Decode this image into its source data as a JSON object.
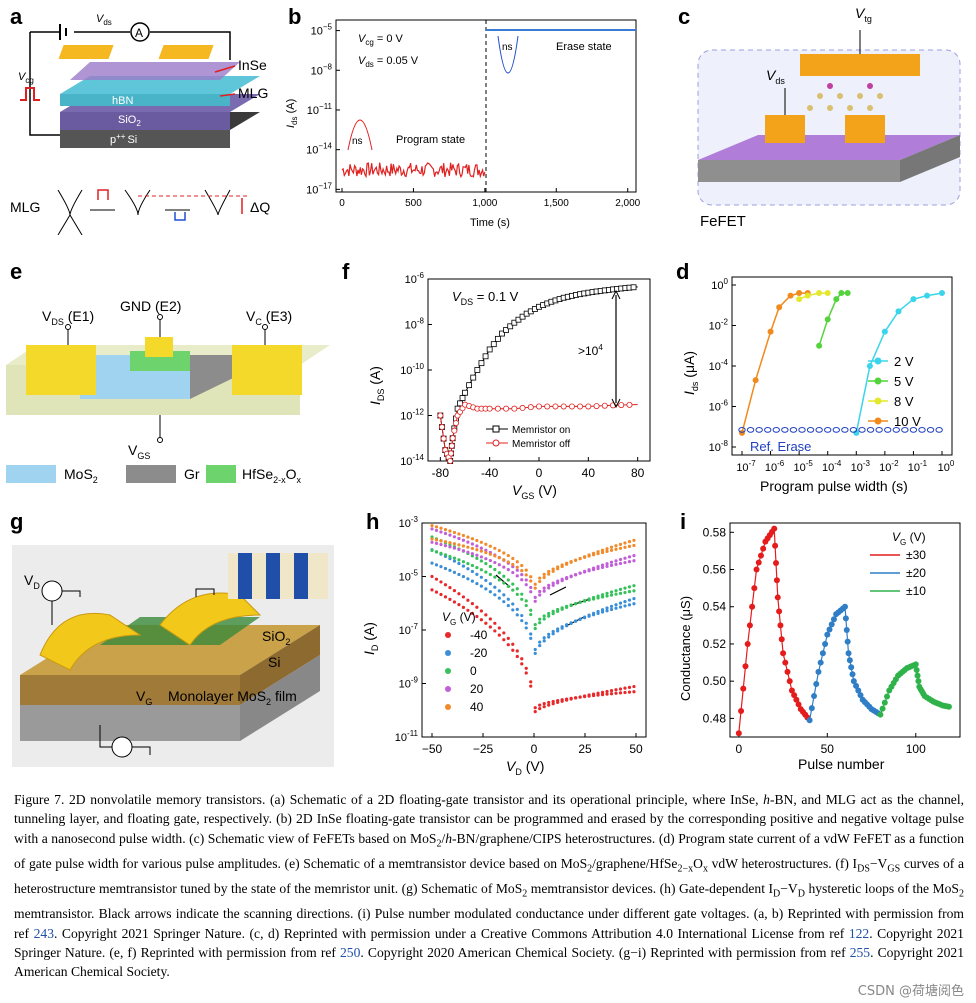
{
  "panels": {
    "a": {
      "letter": "a",
      "vds": "V",
      "vds_sub": "ds",
      "vcg": "V",
      "vcg_sub": "cg",
      "ammeter": "A",
      "layers": [
        "InSe",
        "hBN",
        "MLG",
        "SiO",
        "2",
        "p",
        "++",
        "Si"
      ],
      "mlg": "MLG",
      "dq": "ΔQ"
    },
    "b": {
      "letter": "b",
      "vcg": "V",
      "vcg_sub": "cg",
      "vcg_val": " = 0 V",
      "vds": "V",
      "vds_sub": "ds",
      "vds_val": " = 0.05 V",
      "program": "Program state",
      "erase": "Erase state",
      "ns": "ns",
      "ylabel": "I",
      "ylabel_sub": "ds",
      "ylabel_unit": " (A)",
      "xlabel": "Time (s)",
      "xticks": [
        "0",
        "500",
        "1,000",
        "1,500",
        "2,000"
      ],
      "yticks": [
        "10",
        "10",
        "10",
        "10",
        "10"
      ],
      "yexp": [
        "−5",
        "−8",
        "−11",
        "−14",
        "−17"
      ]
    },
    "c": {
      "letter": "c",
      "vtg": "V",
      "vtg_sub": "tg",
      "vds": "V",
      "vds_sub": "ds",
      "fefet": "FeFET"
    },
    "e": {
      "letter": "e",
      "vds": "V",
      "vds_sub": "DS",
      "vds_rest": " (E1)",
      "gnd": "GND (E2)",
      "vc": "V",
      "vc_sub": "C",
      "vc_rest": " (E3)",
      "vgs": "V",
      "vgs_sub": "GS",
      "legend": [
        {
          "label": "MoS",
          "sub": "2",
          "color": "#9fd3f0"
        },
        {
          "label": "Gr",
          "sub": "",
          "color": "#8c8c8c"
        },
        {
          "label": "HfSe",
          "sub": "2-x",
          "tail": "O",
          "tail_sub": "x",
          "color": "#6dd46d"
        }
      ]
    },
    "f": {
      "letter": "f",
      "vds": "V",
      "vds_sub": "DS",
      "vds_val": " = 0.1 V",
      "ratio": ">10",
      "ratio_exp": "4",
      "on": "Memristor on",
      "off": "Memristor off",
      "ylabel": "I",
      "ylabel_sub": "DS",
      "ylabel_unit": " (A)",
      "xlabel": "V",
      "xlabel_sub": "GS",
      "xlabel_unit": " (V)",
      "xticks": [
        "-80",
        "-40",
        "0",
        "40",
        "80"
      ],
      "yexp": [
        "-6",
        "-8",
        "-10",
        "-12",
        "-14"
      ],
      "ytick_base": "10"
    },
    "d": {
      "letter": "d",
      "ylabel": "I",
      "ylabel_sub": "ds",
      "ylabel_unit": " (μA)",
      "xlabel": "Program pulse width (s)",
      "ref": "Ref. Erase",
      "legend": [
        {
          "label": "2 V",
          "color": "#3ad5ea"
        },
        {
          "label": "5 V",
          "color": "#55d33c"
        },
        {
          "label": "8 V",
          "color": "#e4e82c"
        },
        {
          "label": "10 V",
          "color": "#f08a1c"
        }
      ],
      "xexp": [
        "-7",
        "-6",
        "-5",
        "-4",
        "-3",
        "-2",
        "-1",
        "0"
      ],
      "yexp": [
        "0",
        "-2",
        "-4",
        "-6",
        "-8"
      ],
      "tick_base": "10"
    },
    "g": {
      "letter": "g",
      "vd": "V",
      "vd_sub": "D",
      "vg": "V",
      "vg_sub": "G",
      "sio2": "SiO",
      "sio2_sub": "2",
      "si": "Si",
      "film": "Monolayer MoS",
      "film_sub": "2",
      "film_tail": " film"
    },
    "h": {
      "letter": "h",
      "ylabel": "I",
      "ylabel_sub": "D",
      "ylabel_unit": " (A)",
      "xlabel": "V",
      "xlabel_sub": "D",
      "xlabel_unit": " (V)",
      "legend_title": "V",
      "legend_title_sub": "G",
      "legend_title_unit": " (V)",
      "legend": [
        {
          "label": "-40",
          "color": "#e8282a"
        },
        {
          "label": "-20",
          "color": "#3a8fd8"
        },
        {
          "label": "0",
          "color": "#36c25a"
        },
        {
          "label": "20",
          "color": "#c25ed8"
        },
        {
          "label": "40",
          "color": "#f28a2a"
        }
      ],
      "xticks": [
        "−50",
        "−25",
        "0",
        "25",
        "50"
      ],
      "yexp": [
        "-3",
        "-5",
        "-7",
        "-9",
        "-11"
      ],
      "ytick_base": "10"
    },
    "i": {
      "letter": "i",
      "ylabel": "Conductance (μS)",
      "xlabel": "Pulse number",
      "legend_title": "V",
      "legend_title_sub": "G",
      "legend_title_unit": " (V)",
      "legend": [
        {
          "label": "±30",
          "color": "#e41c1c"
        },
        {
          "label": "±20",
          "color": "#2f7ec6"
        },
        {
          "label": "±10",
          "color": "#2fb24a"
        }
      ],
      "xticks": [
        "0",
        "50",
        "100"
      ],
      "yticks": [
        "0.58",
        "0.56",
        "0.54",
        "0.52",
        "0.50",
        "0.48"
      ]
    }
  },
  "chart_data": [
    {
      "type": "line",
      "panel": "b",
      "title": "",
      "xlabel": "Time (s)",
      "ylabel": "Ids (A)",
      "xlim": [
        0,
        2000
      ],
      "ylim": [
        1e-17,
        1e-05
      ],
      "yscale": "log",
      "series": [
        {
          "name": "Program state",
          "x": [
            0,
            1000
          ],
          "y": [
            3e-16,
            3e-16
          ]
        },
        {
          "name": "Erase state",
          "x": [
            1000,
            2000
          ],
          "y": [
            1e-05,
            1e-05
          ]
        }
      ]
    },
    {
      "type": "line",
      "panel": "f",
      "xlabel": "VGS (V)",
      "ylabel": "IDS (A)",
      "xlim": [
        -90,
        90
      ],
      "ylim": [
        1e-14,
        1e-06
      ],
      "yscale": "log",
      "series": [
        {
          "name": "Memristor on",
          "x": [
            -80,
            -76,
            -72,
            -70,
            -66,
            -60,
            -50,
            -40,
            -30,
            -20,
            -10,
            0,
            10,
            20,
            30,
            40,
            50,
            60,
            70,
            80
          ],
          "y": [
            1e-12,
            3e-14,
            1e-14,
            1e-13,
            2e-12,
            1e-11,
            1e-10,
            8e-10,
            4e-09,
            1.2e-08,
            3e-08,
            6e-08,
            1e-07,
            1.5e-07,
            2e-07,
            2.5e-07,
            3e-07,
            3.5e-07,
            4e-07,
            4.5e-07
          ]
        },
        {
          "name": "Memristor off",
          "x": [
            -80,
            -76,
            -72,
            -70,
            -66,
            -60,
            -50,
            -40,
            -20,
            0,
            20,
            40,
            60,
            80
          ],
          "y": [
            1e-12,
            3e-14,
            1e-14,
            1e-13,
            1e-12,
            3e-12,
            2e-12,
            2e-12,
            2e-12,
            2.5e-12,
            2.5e-12,
            2.5e-12,
            2.8e-12,
            3e-12
          ]
        }
      ]
    },
    {
      "type": "scatter",
      "panel": "d",
      "xlabel": "Program pulse width (s)",
      "ylabel": "Ids (μA)",
      "xlim": [
        1e-07,
        1
      ],
      "ylim": [
        1e-08,
        1
      ],
      "xscale": "log",
      "yscale": "log",
      "series": [
        {
          "name": "10 V",
          "x": [
            1e-07,
            3e-07,
            1e-06,
            2e-06,
            5e-06,
            1e-05,
            2e-05
          ],
          "y": [
            5e-08,
            2e-05,
            0.005,
            0.08,
            0.3,
            0.4,
            0.4
          ]
        },
        {
          "name": "8 V",
          "x": [
            1e-05,
            2e-05,
            5e-05,
            0.0001
          ],
          "y": [
            0.2,
            0.3,
            0.4,
            0.4
          ]
        },
        {
          "name": "5 V",
          "x": [
            5e-05,
            0.0001,
            0.0002,
            0.0003,
            0.0005
          ],
          "y": [
            0.001,
            0.02,
            0.2,
            0.4,
            0.4
          ]
        },
        {
          "name": "2 V",
          "x": [
            0.001,
            0.003,
            0.01,
            0.03,
            0.1,
            0.3,
            1
          ],
          "y": [
            5e-08,
            0.0001,
            0.005,
            0.05,
            0.2,
            0.3,
            0.4
          ]
        },
        {
          "name": "Ref. Erase",
          "x": [
            1e-07,
            1e-06,
            1e-05,
            0.0001,
            0.001,
            0.01,
            0.1,
            1
          ],
          "y": [
            7e-08,
            7e-08,
            7e-08,
            7e-08,
            7e-08,
            7e-08,
            7e-08,
            7e-08
          ]
        }
      ]
    },
    {
      "type": "scatter",
      "panel": "h",
      "xlabel": "VD (V)",
      "ylabel": "ID (A)",
      "xlim": [
        -50,
        50
      ],
      "ylim": [
        1e-11,
        0.001
      ],
      "yscale": "log",
      "series": [
        {
          "name": "-40",
          "vmin": 1e-10,
          "edge_left": 1e-05,
          "edge_right": 5e-10
        },
        {
          "name": "-20",
          "vmin": 1e-08,
          "edge_left": 0.0001,
          "edge_right": 1e-06
        },
        {
          "name": "0",
          "vmin": 1e-07,
          "edge_left": 0.0003,
          "edge_right": 3e-06
        },
        {
          "name": "20",
          "vmin": 1e-06,
          "edge_left": 0.0006,
          "edge_right": 4e-05
        },
        {
          "name": "40",
          "vmin": 3e-06,
          "edge_left": 0.0008,
          "edge_right": 0.00015
        }
      ]
    },
    {
      "type": "line",
      "panel": "i",
      "xlabel": "Pulse number",
      "ylabel": "Conductance (μS)",
      "xlim": [
        -5,
        125
      ],
      "ylim": [
        0.47,
        0.585
      ],
      "series": [
        {
          "name": "±30",
          "x": [
            0,
            5,
            10,
            15,
            20,
            22,
            25,
            30,
            35,
            40
          ],
          "y": [
            0.472,
            0.52,
            0.56,
            0.575,
            0.582,
            0.545,
            0.515,
            0.495,
            0.485,
            0.479
          ]
        },
        {
          "name": "±20",
          "x": [
            40,
            45,
            50,
            55,
            60,
            62,
            65,
            70,
            75,
            80
          ],
          "y": [
            0.479,
            0.505,
            0.525,
            0.536,
            0.54,
            0.515,
            0.5,
            0.49,
            0.485,
            0.482
          ]
        },
        {
          "name": "±10",
          "x": [
            80,
            85,
            90,
            95,
            100,
            102,
            105,
            110,
            115,
            120
          ],
          "y": [
            0.482,
            0.495,
            0.503,
            0.507,
            0.509,
            0.497,
            0.492,
            0.489,
            0.487,
            0.486
          ]
        }
      ]
    }
  ],
  "caption": {
    "parts": [
      "Figure 7. 2D nonvolatile memory transistors. (a) Schematic of a 2D floating-gate transistor and its operational principle, where InSe, ",
      "h",
      "-BN, and MLG act as the channel, tunneling layer, and floating gate, respectively. (b) 2D InSe floating-gate transistor can be programmed and erased by the corresponding positive and negative voltage pulse with a nanosecond pulse width. (c) Schematic view of FeFETs based on MoS",
      "2",
      "/",
      "h",
      "-BN/graphene/CIPS heterostructures. (d) Program state current of a vdW FeFET as a function of gate pulse width for various pulse amplitudes. (e) Schematic of a memtransistor device based on MoS",
      "2",
      "/graphene/HfSe",
      "2−x",
      "O",
      "x",
      " vdW heterostructures. (f) I",
      "DS",
      "−V",
      "GS",
      " curves of a heterostructure memtransistor tuned by the state of the memristor unit. (g) Schematic of MoS",
      "2",
      " memtransistor devices. (h) Gate-dependent I",
      "D",
      "−V",
      "D",
      " hysteretic loops of the MoS",
      "2",
      " memtransistor. Black arrows indicate the scanning directions. (i) Pulse number modulated conductance under different gate voltages. (a, b) Reprinted with permission from ref ",
      "243",
      ". Copyright 2021 Springer Nature. (c, d) Reprinted with permission under a Creative Commons Attribution 4.0 International License from ref ",
      "122",
      ". Copyright 2021 Springer Nature. (e, f) Reprinted with permission from ref ",
      "250",
      ". Copyright 2020 American Chemical Society. (g−i) Reprinted with permission from ref ",
      "255",
      ". Copyright 2021 American Chemical Society."
    ]
  },
  "watermark": "CSDN @荷塘阅色"
}
